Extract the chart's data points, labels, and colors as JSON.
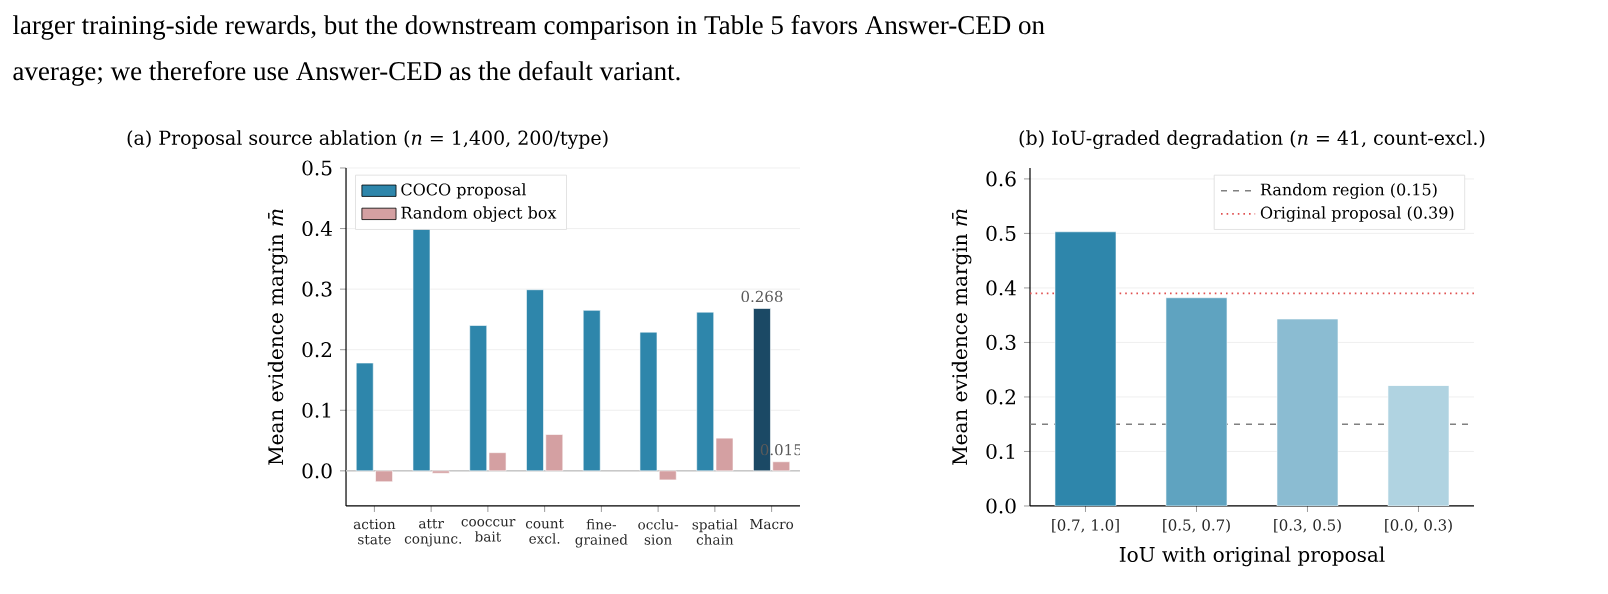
{
  "chart_data": [
    {
      "type": "bar",
      "title": "(a)  Proposal source ablation  (*n* = 1,400, 200/type)",
      "ylabel": "Mean evidence margin  *m̄*",
      "categories": [
        "action state",
        "attr conjunc.",
        "cooccur bait",
        "count excl.",
        "fine-grained",
        "occlu-sion",
        "spatial chain",
        "Macro"
      ],
      "series": [
        {
          "name": "COCO proposal",
          "color": "#2e86ab",
          "colors": [
            "#2e86ab",
            "#2e86ab",
            "#2e86ab",
            "#2e86ab",
            "#2e86ab",
            "#2e86ab",
            "#2e86ab",
            "#1b4965"
          ],
          "values": [
            0.178,
            0.4,
            0.24,
            0.299,
            0.265,
            0.229,
            0.262,
            0.268
          ],
          "value_labels": [
            null,
            null,
            null,
            null,
            null,
            null,
            null,
            "0.268"
          ]
        },
        {
          "name": "Random object box",
          "color": "#d4a0a2",
          "values": [
            -0.018,
            -0.004,
            0.03,
            0.06,
            null,
            -0.015,
            0.054,
            0.015
          ],
          "value_labels": [
            null,
            null,
            null,
            null,
            null,
            null,
            null,
            "0.015"
          ]
        }
      ],
      "ylim": [
        -0.058,
        0.5
      ],
      "yticks": [
        {
          "value": 0,
          "label": "0.0"
        },
        0.1,
        0.2,
        0.3,
        0.4,
        0.5
      ],
      "grid": "y",
      "legend": "top left",
      "ref_lines": [
        {
          "axis": "y",
          "value": 0,
          "color": "#c8c8c8"
        }
      ],
      "annotations": [
        "larger training-side rewards, but the downstream comparison in Table 5 favors Answer-CED on",
        "average; we therefore use Answer-CED as the default variant."
      ]
    },
    {
      "type": "bar",
      "title": "(b)  IoU-graded degradation  (*n* = 41, count-excl.)",
      "xlabel": "IoU with original proposal",
      "ylabel": "Mean evidence margin  *m̄*",
      "categories": [
        "[0.7, 1.0]",
        "[0.5, 0.7)",
        "[0.3, 0.5)",
        "[0.0, 0.3)"
      ],
      "values": [
        0.503,
        0.382,
        0.343,
        0.221
      ],
      "colors": [
        "#2e86ab",
        "#5fa3c0",
        "#8bbcd2",
        "#b0d3e1"
      ],
      "ylim": [
        0,
        0.62
      ],
      "yticks": [
        {
          "value": 0,
          "label": "0.0"
        },
        0.1,
        0.2,
        0.3,
        0.4,
        0.5,
        0.6
      ],
      "grid": "y",
      "legend": "top right",
      "ref_lines": [
        {
          "axis": "y",
          "value": 0.15,
          "label": "Random region (0.15)",
          "color": "#808080",
          "line_style": "dashed"
        },
        {
          "axis": "y",
          "value": 0.39,
          "label": "Original proposal (0.39)",
          "color": "#e05050",
          "line_style": "dotted"
        }
      ]
    }
  ]
}
